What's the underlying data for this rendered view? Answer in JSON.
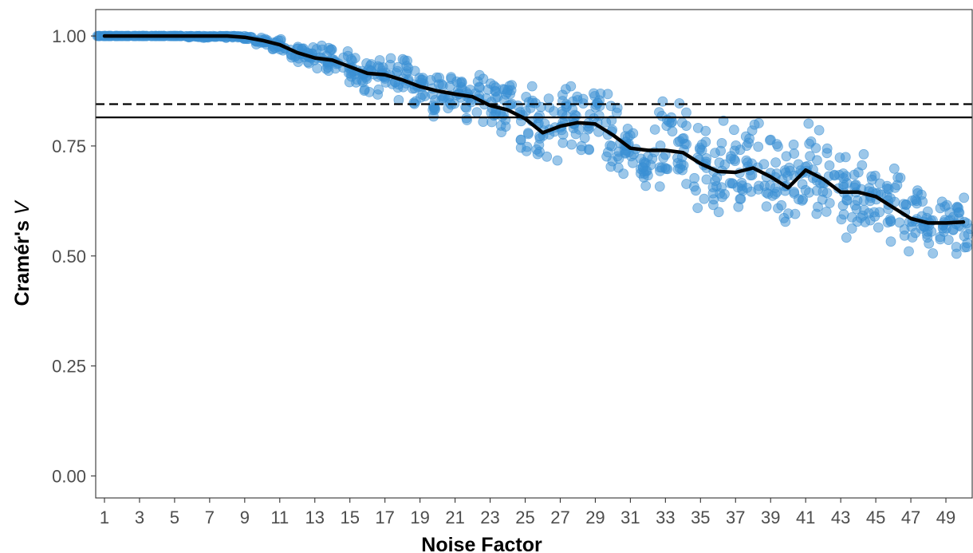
{
  "chart_data": {
    "type": "scatter",
    "title": "",
    "xlabel": "Noise Factor",
    "ylabel_main": "Cramér's ",
    "ylabel_italic": "V",
    "xlim": [
      0.5,
      50.5
    ],
    "ylim": [
      -0.05,
      1.06
    ],
    "x_ticks": [
      1,
      3,
      5,
      7,
      9,
      11,
      13,
      15,
      17,
      19,
      21,
      23,
      25,
      27,
      29,
      31,
      33,
      35,
      37,
      39,
      41,
      43,
      45,
      47,
      49
    ],
    "y_ticks": [
      0.0,
      0.25,
      0.5,
      0.75,
      1.0
    ],
    "y_tick_labels": [
      "0.00",
      "0.25",
      "0.50",
      "0.75",
      "1.00"
    ],
    "grid": false,
    "colors": {
      "points": "#3a8fd3",
      "trend": "#000000",
      "reference_lines": "#000000"
    },
    "reference_lines": [
      {
        "style": "dashed",
        "y": 0.845
      },
      {
        "style": "solid",
        "y": 0.815
      }
    ],
    "points_per_noise_factor": 20,
    "trend": {
      "x": [
        1,
        2,
        3,
        4,
        5,
        6,
        7,
        8,
        9,
        10,
        11,
        12,
        13,
        14,
        15,
        16,
        17,
        18,
        19,
        20,
        21,
        22,
        23,
        24,
        25,
        26,
        27,
        28,
        29,
        30,
        31,
        32,
        33,
        34,
        35,
        36,
        37,
        38,
        39,
        40,
        41,
        42,
        43,
        44,
        45,
        46,
        47,
        48,
        49,
        50
      ],
      "y": [
        1.0,
        1.0,
        1.0,
        1.0,
        1.0,
        1.0,
        1.0,
        1.0,
        0.997,
        0.99,
        0.98,
        0.962,
        0.95,
        0.945,
        0.93,
        0.915,
        0.912,
        0.9,
        0.885,
        0.875,
        0.868,
        0.862,
        0.842,
        0.832,
        0.812,
        0.78,
        0.795,
        0.803,
        0.8,
        0.775,
        0.745,
        0.74,
        0.74,
        0.735,
        0.71,
        0.692,
        0.69,
        0.7,
        0.68,
        0.655,
        0.695,
        0.675,
        0.645,
        0.645,
        0.635,
        0.61,
        0.585,
        0.575,
        0.575,
        0.577
      ]
    },
    "spread_by_x": {
      "x": [
        1,
        5,
        8,
        10,
        12,
        14,
        16,
        18,
        20,
        22,
        24,
        26,
        28,
        30,
        32,
        34,
        36,
        38,
        40,
        42,
        44,
        46,
        48,
        50
      ],
      "half_width": [
        0.0,
        0.0,
        0.004,
        0.01,
        0.025,
        0.035,
        0.045,
        0.055,
        0.06,
        0.065,
        0.075,
        0.09,
        0.1,
        0.11,
        0.115,
        0.12,
        0.12,
        0.12,
        0.12,
        0.115,
        0.11,
        0.1,
        0.09,
        0.08
      ]
    }
  }
}
